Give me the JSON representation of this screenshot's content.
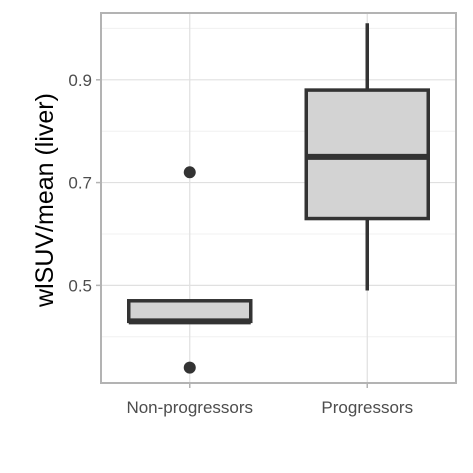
{
  "chart_data": {
    "type": "boxplot",
    "title": "",
    "xlabel": "",
    "ylabel": "wlSUV/mean (liver)",
    "ylim": [
      0.31,
      1.03
    ],
    "yticks": [
      0.5,
      0.7,
      0.9
    ],
    "ytick_labels": [
      "0.5",
      "0.7",
      "0.9"
    ],
    "grid": true,
    "categories": [
      "Non-progressors",
      "Progressors"
    ],
    "boxes": [
      {
        "category": "Non-progressors",
        "q1": 0.43,
        "median": 0.43,
        "q3": 0.47,
        "whisker_low": 0.43,
        "whisker_high": 0.47,
        "outliers": [
          0.72,
          0.34
        ]
      },
      {
        "category": "Progressors",
        "q1": 0.63,
        "median": 0.75,
        "q3": 0.88,
        "whisker_low": 0.49,
        "whisker_high": 1.01,
        "outliers": []
      }
    ],
    "colors": {
      "box_fill": "#d3d3d3",
      "box_stroke": "#333333",
      "grid_major": "#e0e0e0",
      "grid_minor": "#f0f0f0",
      "panel_border": "#b3b3b3",
      "outlier": "#333333"
    }
  }
}
